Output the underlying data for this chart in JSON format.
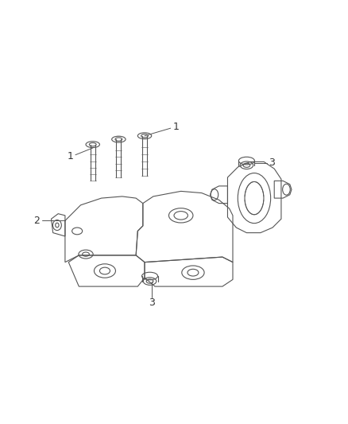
{
  "background_color": "#ffffff",
  "figure_width": 4.38,
  "figure_height": 5.33,
  "dpi": 100,
  "line_color": "#555555",
  "line_width": 0.8,
  "label_color": "#333333",
  "label_fontsize": 9
}
